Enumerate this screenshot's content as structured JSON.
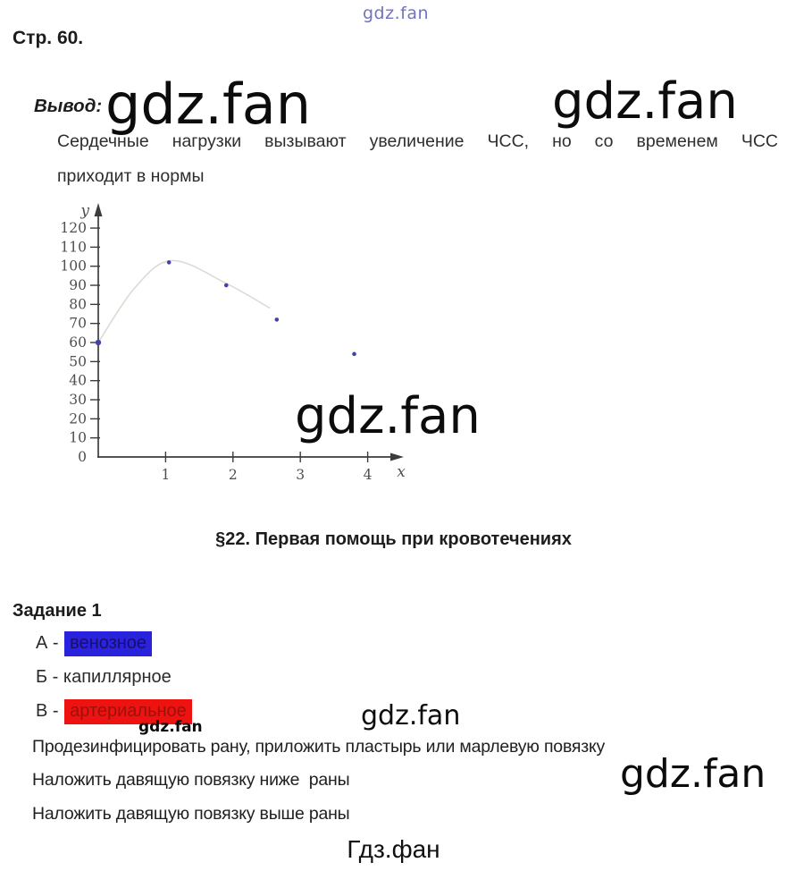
{
  "page": {
    "page_label": "Стр. 60.",
    "conclusion_label": "Вывод:",
    "paragraph": {
      "line1": "Сердечные нагрузки вызывают увеличение ЧСС, но со временем ЧСС",
      "line2": "приходит в нормы"
    },
    "section_heading": "§22. Первая помощь при кровотечениях",
    "task": {
      "title": "Задание 1",
      "options": [
        {
          "prefix": "А - ",
          "word": "венозное",
          "highlight": "blue"
        },
        {
          "prefix": "Б - ",
          "word": "капиллярное",
          "highlight": "none"
        },
        {
          "prefix": "В - ",
          "word": "артериальное",
          "highlight": "red"
        }
      ],
      "answer_lines": [
        "Продезинфицировать рану, приложить пластырь или марлевую повязку",
        "Наложить давящую повязку ниже  раны",
        "Наложить давящую повязку выше раны"
      ]
    },
    "footer": "Гдз.фан"
  },
  "watermarks": {
    "top": "gdz.fan",
    "after_conclusion": "gdz.fan",
    "top_right": "gdz.fan",
    "chart": "gdz.fan",
    "small_under_option": "gdz.fan",
    "mid_bottom": "gdz.fan",
    "bottom_right": "gdz.fan"
  },
  "colors": {
    "blue_highlight": "#2b22dd",
    "blue_highlight_text": "#171069",
    "red_highlight": "#ee1310",
    "red_highlight_text": "#9b120c",
    "watermark_black": "#0c0c0c",
    "watermark_blue": "#5a5ab8",
    "text": "#2d2d2d",
    "axis": "#3c3c3c",
    "tick_label": "#4f4f4f",
    "point": "#4343a5",
    "curve": "#d5d2c8"
  },
  "chart_data": {
    "type": "scatter",
    "title": "",
    "xlabel": "x",
    "ylabel": "y",
    "xlim": [
      0,
      4.5
    ],
    "ylim": [
      0,
      125
    ],
    "x_ticks": [
      1,
      2,
      3,
      4
    ],
    "y_ticks": [
      0,
      10,
      20,
      30,
      40,
      50,
      60,
      70,
      80,
      90,
      100,
      110,
      120
    ],
    "points": [
      [
        0,
        60
      ],
      [
        1.05,
        102
      ],
      [
        1.9,
        90
      ],
      [
        2.65,
        72
      ],
      [
        3.8,
        54
      ]
    ],
    "trend_curve": [
      [
        0,
        60
      ],
      [
        0.55,
        89
      ],
      [
        1.1,
        103
      ],
      [
        1.9,
        91
      ],
      [
        2.55,
        78
      ]
    ],
    "grid": false,
    "legend": null
  }
}
